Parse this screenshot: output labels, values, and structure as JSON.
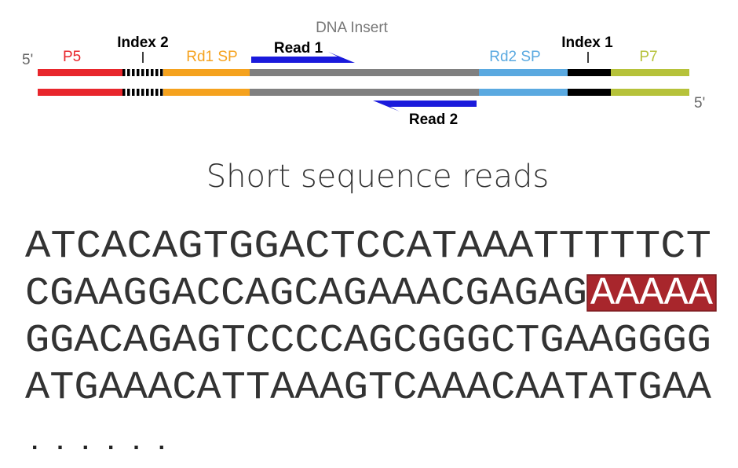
{
  "diagram": {
    "labels": {
      "five_prime_left": "5'",
      "p5": "P5",
      "index2": "Index 2",
      "rd1sp": "Rd1 SP",
      "dna_insert": "DNA Insert",
      "read1": "Read 1",
      "rd2sp": "Rd2 SP",
      "index1": "Index 1",
      "p7": "P7",
      "five_prime_right": "5'",
      "read2": "Read 2"
    }
  },
  "title": "Short sequence reads",
  "reads": {
    "lines": [
      "ATCACAGTGGACTCCATAAATTTTTCT",
      "CGAAGGACCAGCAGAAACGAGAG",
      "GGACAGAGTCCCCAGCGGGCTGAAGGGG",
      "ATGAAACATTAAAGTCAAACAATATGAA"
    ],
    "highlight": "AAAAA",
    "ellipsis": "......"
  }
}
